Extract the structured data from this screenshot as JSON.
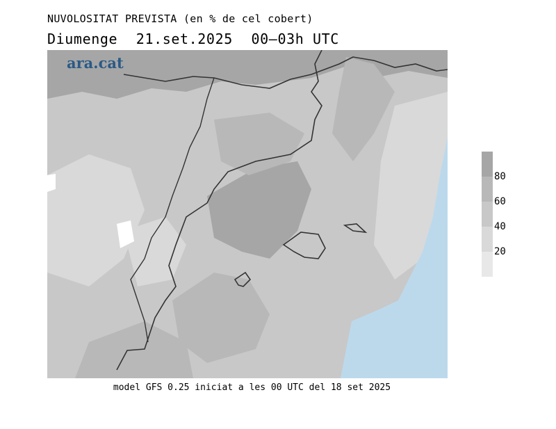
{
  "title": {
    "line1": "NUVOLOSITAT PREVISTA (en % de cel cobert)",
    "day": "Diumenge",
    "date": "21.set.2025",
    "time": "00–03h UTC"
  },
  "logo": "ara.cat",
  "footer": "model GFS 0.25 iniciat a les 00 UTC del 18 set 2025",
  "legend": {
    "ticks": [
      "80",
      "60",
      "40",
      "20"
    ],
    "colors": [
      "#a6a6a6",
      "#b8b8b8",
      "#c8c8c8",
      "#d9d9d9",
      "#e8e8e8"
    ]
  },
  "map_colors": {
    "sea_clear": "#bcd9ec",
    "coast_line": "#333333"
  }
}
